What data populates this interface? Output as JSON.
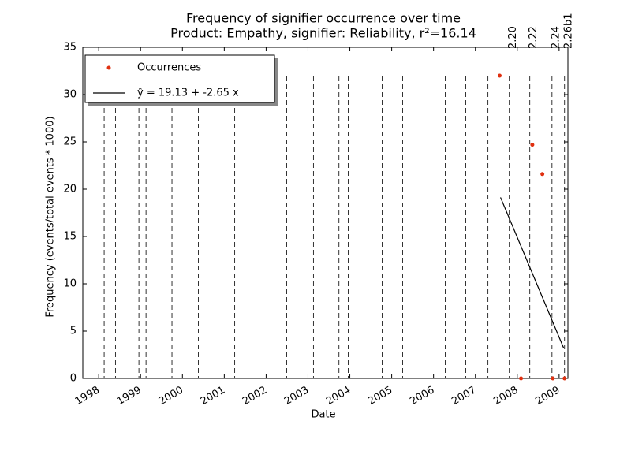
{
  "chart_data": {
    "type": "scatter",
    "title": "Frequency of signifier occurrence over time",
    "subtitle": "Product: Empathy, signifier: Reliability, r²=16.14",
    "xlabel": "Date",
    "ylabel": "Frequency (events/total events * 1000)",
    "xlim": [
      1997.62,
      2009.21
    ],
    "xticks": [
      1998,
      1999,
      2000,
      2001,
      2002,
      2003,
      2004,
      2005,
      2006,
      2007,
      2008,
      2009
    ],
    "ylim": [
      0,
      35
    ],
    "yticks": [
      0,
      5,
      10,
      15,
      20,
      25,
      30,
      35
    ],
    "legend": "upper left",
    "series": [
      {
        "name": "Occurrences",
        "type": "scatter",
        "color": "#e03010",
        "x": [
          2007.58,
          2008.09,
          2008.36,
          2008.6,
          2008.85,
          2009.13
        ],
        "values": [
          32,
          0,
          24.7,
          21.6,
          0,
          0
        ]
      },
      {
        "name": "ŷ = 19.13 + -2.65 x",
        "type": "line",
        "color": "#000000",
        "x": [
          2007.6,
          2009.11
        ],
        "values": [
          19.13,
          3.2
        ]
      }
    ],
    "markers": {
      "x": [
        1998.13,
        1998.4,
        1998.96,
        1999.13,
        1999.75,
        2000.38,
        2001.25,
        2002.49,
        2003.13,
        2003.74,
        2003.96,
        2004.34,
        2004.77,
        2005.26,
        2005.77,
        2006.28,
        2006.77,
        2007.3,
        2007.81,
        2008.3,
        2008.83,
        2009.13
      ],
      "labels": [
        null,
        null,
        null,
        null,
        null,
        null,
        null,
        null,
        null,
        null,
        null,
        null,
        null,
        null,
        null,
        null,
        null,
        null,
        "2.20",
        "2.22",
        "2.24",
        "2.26b1"
      ]
    }
  }
}
